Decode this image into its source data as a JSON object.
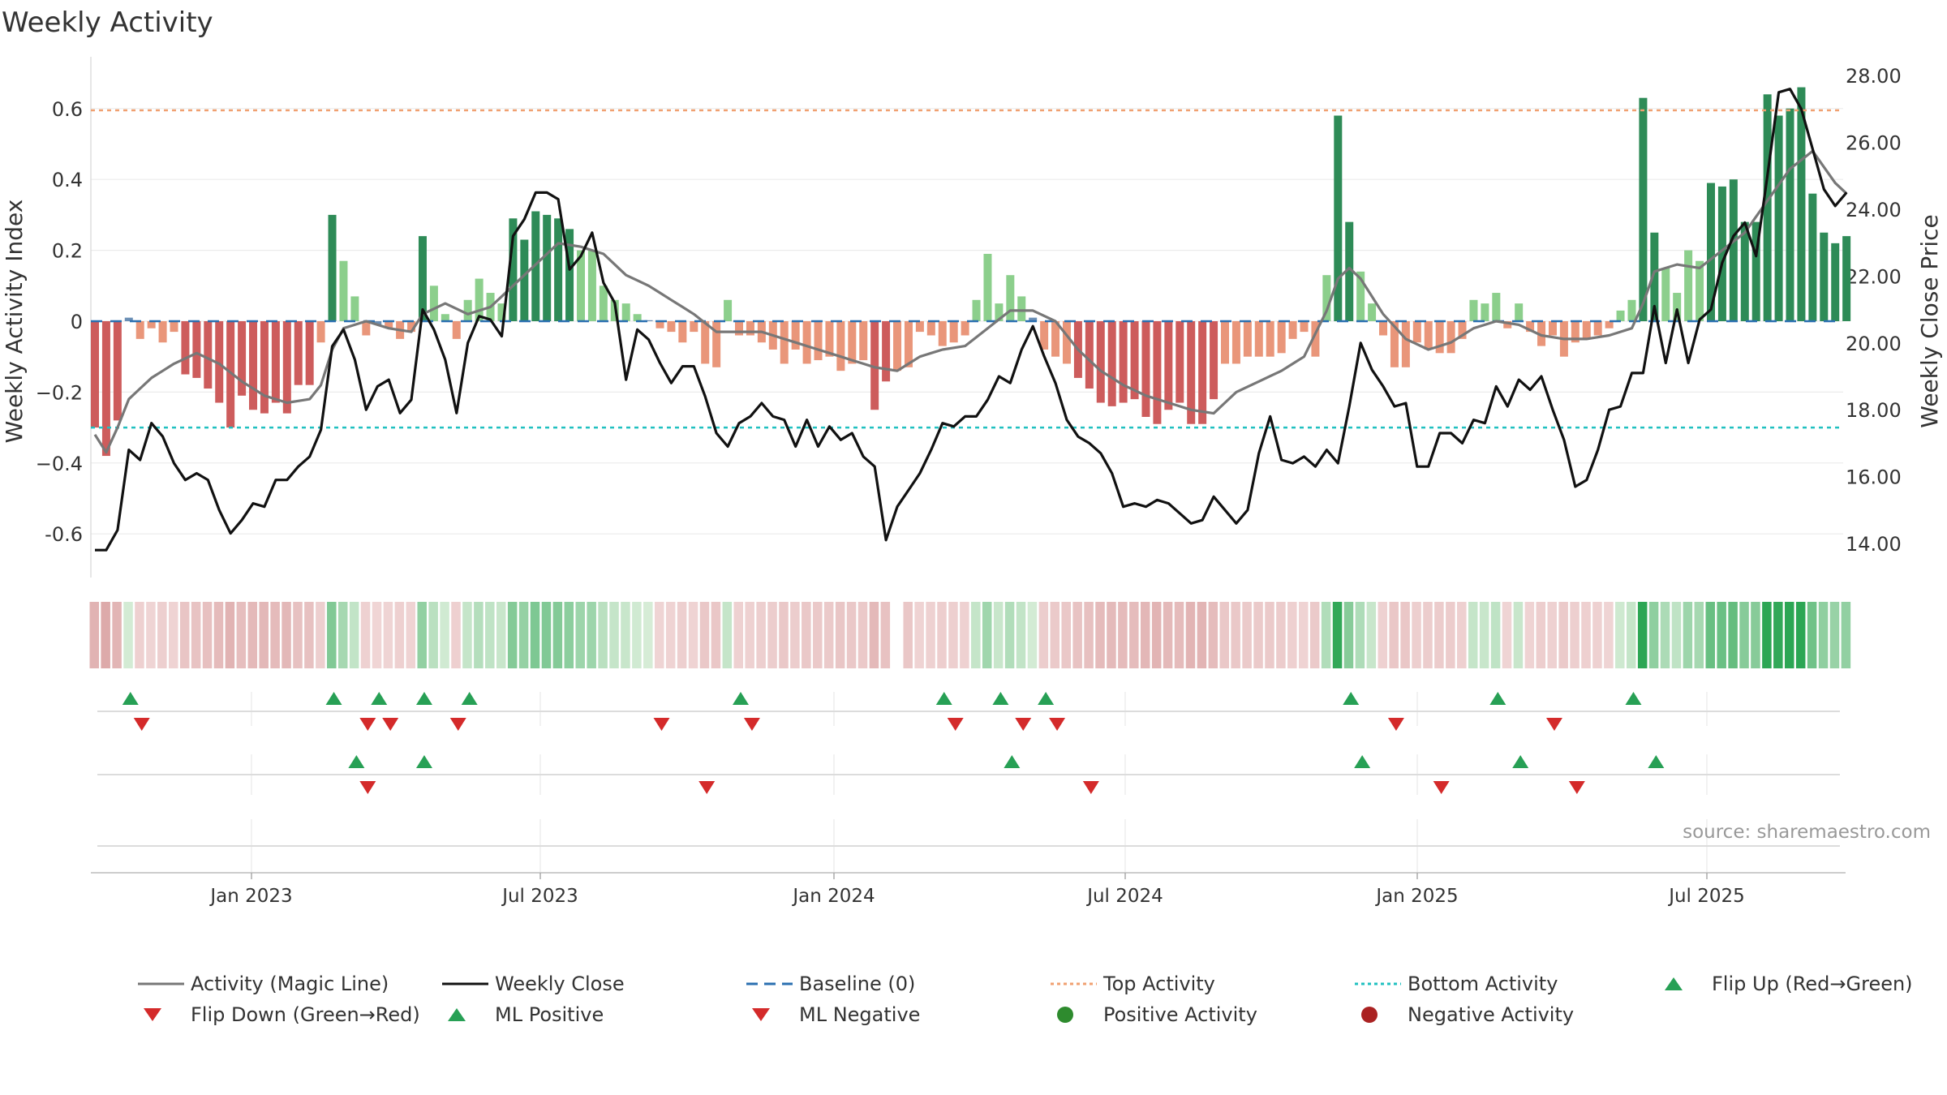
{
  "title": "Weekly Activity",
  "source": "source: sharemaestro.com",
  "colors": {
    "magic_line": "#777777",
    "close_line": "#111111",
    "baseline": "#2a6fb0",
    "top_line": "#f0a070",
    "bottom_line": "#20c0c0",
    "pos_strong": "#2e8b57",
    "pos_light": "#8ccf8c",
    "neg_strong": "#cd5c5c",
    "neg_light": "#e9967a",
    "up_marker": "#27a055",
    "down_marker": "#d42a2a"
  },
  "chart_data": {
    "type": "bar+line",
    "title": "Weekly Activity",
    "ylabel_left": "Weekly Activity Index",
    "ylabel_right": "Weekly Close Price",
    "y_left_range": [
      -0.72,
      0.72
    ],
    "y_left_ticks": [
      "-0.6",
      "−0.4",
      "−0.2",
      "0",
      "0.2",
      "0.4",
      "0.6"
    ],
    "y_right_range": [
      13.0,
      28.6
    ],
    "y_right_ticks": [
      "14.00",
      "16.00",
      "18.00",
      "20.00",
      "22.00",
      "24.00",
      "26.00",
      "28.00"
    ],
    "x_ticks": [
      "Jan 2023",
      "Jul 2023",
      "Jan 2024",
      "Jul 2024",
      "Jan 2025",
      "Jul 2025"
    ],
    "top_activity": 0.595,
    "bottom_activity": -0.3,
    "activity_keyframes": [
      [
        0,
        -0.3
      ],
      [
        1,
        -0.38
      ],
      [
        2,
        -0.28
      ],
      [
        3,
        0.01
      ],
      [
        4,
        -0.05
      ],
      [
        5,
        -0.02
      ],
      [
        6,
        -0.06
      ],
      [
        7,
        -0.03
      ],
      [
        8,
        -0.15
      ],
      [
        9,
        -0.16
      ],
      [
        10,
        -0.19
      ],
      [
        11,
        -0.23
      ],
      [
        12,
        -0.3
      ],
      [
        13,
        -0.21
      ],
      [
        14,
        -0.25
      ],
      [
        15,
        -0.26
      ],
      [
        16,
        -0.23
      ],
      [
        17,
        -0.26
      ],
      [
        18,
        -0.18
      ],
      [
        19,
        -0.18
      ],
      [
        20,
        -0.06
      ],
      [
        21,
        0.3
      ],
      [
        22,
        0.17
      ],
      [
        23,
        0.07
      ],
      [
        24,
        -0.04
      ],
      [
        25,
        -0.01
      ],
      [
        26,
        -0.02
      ],
      [
        27,
        -0.05
      ],
      [
        28,
        -0.03
      ],
      [
        29,
        0.24
      ],
      [
        30,
        0.1
      ],
      [
        31,
        0.02
      ],
      [
        32,
        -0.05
      ],
      [
        33,
        0.06
      ],
      [
        34,
        0.12
      ],
      [
        35,
        0.08
      ],
      [
        36,
        0.05
      ],
      [
        37,
        0.29
      ],
      [
        38,
        0.23
      ],
      [
        39,
        0.31
      ],
      [
        40,
        0.3
      ],
      [
        41,
        0.29
      ],
      [
        42,
        0.26
      ],
      [
        43,
        0.2
      ],
      [
        44,
        0.2
      ],
      [
        45,
        0.1
      ],
      [
        46,
        0.06
      ],
      [
        47,
        0.05
      ],
      [
        48,
        0.02
      ],
      [
        49,
        0
      ],
      [
        50,
        -0.02
      ],
      [
        51,
        -0.03
      ],
      [
        52,
        -0.06
      ],
      [
        53,
        -0.03
      ],
      [
        54,
        -0.12
      ],
      [
        55,
        -0.13
      ],
      [
        56,
        0.06
      ],
      [
        57,
        -0.04
      ],
      [
        58,
        -0.04
      ],
      [
        59,
        -0.06
      ],
      [
        60,
        -0.08
      ],
      [
        61,
        -0.12
      ],
      [
        62,
        -0.08
      ],
      [
        63,
        -0.12
      ],
      [
        64,
        -0.11
      ],
      [
        65,
        -0.1
      ],
      [
        66,
        -0.14
      ],
      [
        67,
        -0.12
      ],
      [
        68,
        -0.11
      ],
      [
        69,
        -0.25
      ],
      [
        70,
        -0.17
      ],
      [
        71,
        -0.14
      ],
      [
        72,
        -0.13
      ],
      [
        73,
        -0.03
      ],
      [
        74,
        -0.04
      ],
      [
        75,
        -0.07
      ],
      [
        76,
        -0.06
      ],
      [
        77,
        -0.04
      ],
      [
        78,
        0.06
      ],
      [
        79,
        0.19
      ],
      [
        80,
        0.05
      ],
      [
        81,
        0.13
      ],
      [
        82,
        0.07
      ],
      [
        83,
        0.01
      ],
      [
        84,
        -0.08
      ],
      [
        85,
        -0.1
      ],
      [
        86,
        -0.12
      ],
      [
        87,
        -0.16
      ],
      [
        88,
        -0.19
      ],
      [
        89,
        -0.23
      ],
      [
        90,
        -0.24
      ],
      [
        91,
        -0.23
      ],
      [
        92,
        -0.22
      ],
      [
        93,
        -0.27
      ],
      [
        94,
        -0.29
      ],
      [
        95,
        -0.25
      ],
      [
        96,
        -0.23
      ],
      [
        97,
        -0.29
      ],
      [
        98,
        -0.29
      ],
      [
        99,
        -0.22
      ],
      [
        100,
        -0.12
      ],
      [
        101,
        -0.12
      ],
      [
        102,
        -0.1
      ],
      [
        103,
        -0.1
      ],
      [
        104,
        -0.1
      ],
      [
        105,
        -0.09
      ],
      [
        106,
        -0.05
      ],
      [
        107,
        -0.03
      ],
      [
        108,
        -0.1
      ],
      [
        109,
        0.13
      ],
      [
        110,
        0.58
      ],
      [
        111,
        0.28
      ],
      [
        112,
        0.14
      ],
      [
        113,
        0.05
      ],
      [
        114,
        -0.04
      ],
      [
        115,
        -0.13
      ],
      [
        116,
        -0.13
      ],
      [
        117,
        -0.06
      ],
      [
        118,
        -0.08
      ],
      [
        119,
        -0.09
      ],
      [
        120,
        -0.09
      ],
      [
        121,
        -0.05
      ],
      [
        122,
        0.06
      ],
      [
        123,
        0.05
      ],
      [
        124,
        0.08
      ],
      [
        125,
        -0.02
      ],
      [
        126,
        0.05
      ],
      [
        127,
        -0.03
      ],
      [
        128,
        -0.07
      ],
      [
        129,
        -0.04
      ],
      [
        130,
        -0.1
      ],
      [
        131,
        -0.06
      ],
      [
        132,
        -0.05
      ],
      [
        133,
        -0.04
      ],
      [
        134,
        -0.02
      ],
      [
        135,
        0.03
      ],
      [
        136,
        0.06
      ],
      [
        137,
        0.63
      ],
      [
        138,
        0.25
      ],
      [
        139,
        0.15
      ],
      [
        140,
        0.08
      ],
      [
        141,
        0.2
      ],
      [
        142,
        0.17
      ],
      [
        143,
        0.39
      ],
      [
        144,
        0.38
      ],
      [
        145,
        0.4
      ],
      [
        146,
        0.28
      ],
      [
        147,
        0.28
      ],
      [
        148,
        0.64
      ],
      [
        149,
        0.58
      ],
      [
        150,
        0.6
      ],
      [
        151,
        0.66
      ],
      [
        152,
        0.36
      ],
      [
        153,
        0.25
      ],
      [
        154,
        0.22
      ],
      [
        155,
        0.24
      ]
    ],
    "magic_keyframes": [
      [
        0,
        -0.32
      ],
      [
        1,
        -0.37
      ],
      [
        2,
        -0.3
      ],
      [
        3,
        -0.22
      ],
      [
        5,
        -0.16
      ],
      [
        7,
        -0.12
      ],
      [
        9,
        -0.09
      ],
      [
        11,
        -0.12
      ],
      [
        13,
        -0.17
      ],
      [
        15,
        -0.21
      ],
      [
        17,
        -0.23
      ],
      [
        19,
        -0.22
      ],
      [
        20,
        -0.18
      ],
      [
        21,
        -0.08
      ],
      [
        22,
        -0.02
      ],
      [
        24,
        0
      ],
      [
        26,
        -0.02
      ],
      [
        28,
        -0.03
      ],
      [
        29,
        0.02
      ],
      [
        31,
        0.05
      ],
      [
        33,
        0.02
      ],
      [
        35,
        0.04
      ],
      [
        37,
        0.1
      ],
      [
        39,
        0.16
      ],
      [
        41,
        0.22
      ],
      [
        43,
        0.21
      ],
      [
        45,
        0.19
      ],
      [
        47,
        0.13
      ],
      [
        49,
        0.1
      ],
      [
        51,
        0.06
      ],
      [
        53,
        0.02
      ],
      [
        55,
        -0.03
      ],
      [
        57,
        -0.03
      ],
      [
        59,
        -0.03
      ],
      [
        61,
        -0.05
      ],
      [
        63,
        -0.07
      ],
      [
        65,
        -0.09
      ],
      [
        67,
        -0.11
      ],
      [
        69,
        -0.13
      ],
      [
        71,
        -0.14
      ],
      [
        73,
        -0.1
      ],
      [
        75,
        -0.08
      ],
      [
        77,
        -0.07
      ],
      [
        79,
        -0.02
      ],
      [
        81,
        0.03
      ],
      [
        83,
        0.03
      ],
      [
        85,
        0
      ],
      [
        87,
        -0.08
      ],
      [
        89,
        -0.14
      ],
      [
        91,
        -0.18
      ],
      [
        93,
        -0.21
      ],
      [
        95,
        -0.23
      ],
      [
        97,
        -0.25
      ],
      [
        99,
        -0.26
      ],
      [
        101,
        -0.2
      ],
      [
        103,
        -0.17
      ],
      [
        105,
        -0.14
      ],
      [
        107,
        -0.1
      ],
      [
        109,
        0.03
      ],
      [
        110,
        0.12
      ],
      [
        111,
        0.15
      ],
      [
        112,
        0.12
      ],
      [
        114,
        0.02
      ],
      [
        116,
        -0.05
      ],
      [
        118,
        -0.08
      ],
      [
        120,
        -0.06
      ],
      [
        122,
        -0.02
      ],
      [
        124,
        0
      ],
      [
        126,
        -0.01
      ],
      [
        128,
        -0.04
      ],
      [
        130,
        -0.05
      ],
      [
        132,
        -0.05
      ],
      [
        134,
        -0.04
      ],
      [
        136,
        -0.02
      ],
      [
        137,
        0.05
      ],
      [
        138,
        0.14
      ],
      [
        140,
        0.16
      ],
      [
        142,
        0.15
      ],
      [
        144,
        0.2
      ],
      [
        146,
        0.25
      ],
      [
        148,
        0.34
      ],
      [
        150,
        0.43
      ],
      [
        152,
        0.48
      ],
      [
        154,
        0.39
      ],
      [
        155,
        0.36
      ]
    ],
    "close_keyframes": [
      [
        0,
        13.8
      ],
      [
        1,
        13.8
      ],
      [
        2,
        14.4
      ],
      [
        3,
        16.8
      ],
      [
        4,
        16.5
      ],
      [
        5,
        17.6
      ],
      [
        6,
        17.2
      ],
      [
        7,
        16.4
      ],
      [
        8,
        15.9
      ],
      [
        9,
        16.1
      ],
      [
        10,
        15.9
      ],
      [
        11,
        15.0
      ],
      [
        12,
        14.3
      ],
      [
        13,
        14.7
      ],
      [
        14,
        15.2
      ],
      [
        15,
        15.1
      ],
      [
        16,
        15.9
      ],
      [
        17,
        15.9
      ],
      [
        18,
        16.3
      ],
      [
        19,
        16.6
      ],
      [
        20,
        17.4
      ],
      [
        21,
        19.9
      ],
      [
        22,
        20.4
      ],
      [
        23,
        19.5
      ],
      [
        24,
        18.0
      ],
      [
        25,
        18.7
      ],
      [
        26,
        18.9
      ],
      [
        27,
        17.9
      ],
      [
        28,
        18.3
      ],
      [
        29,
        21.0
      ],
      [
        30,
        20.4
      ],
      [
        31,
        19.5
      ],
      [
        32,
        17.9
      ],
      [
        33,
        20.0
      ],
      [
        34,
        20.8
      ],
      [
        35,
        20.7
      ],
      [
        36,
        20.2
      ],
      [
        37,
        23.2
      ],
      [
        38,
        23.7
      ],
      [
        39,
        24.5
      ],
      [
        40,
        24.5
      ],
      [
        41,
        24.3
      ],
      [
        42,
        22.2
      ],
      [
        43,
        22.6
      ],
      [
        44,
        23.3
      ],
      [
        45,
        21.8
      ],
      [
        46,
        21.2
      ],
      [
        47,
        18.9
      ],
      [
        48,
        20.4
      ],
      [
        49,
        20.1
      ],
      [
        50,
        19.4
      ],
      [
        51,
        18.8
      ],
      [
        52,
        19.3
      ],
      [
        53,
        19.3
      ],
      [
        54,
        18.4
      ],
      [
        55,
        17.3
      ],
      [
        56,
        16.9
      ],
      [
        57,
        17.6
      ],
      [
        58,
        17.8
      ],
      [
        59,
        18.2
      ],
      [
        60,
        17.8
      ],
      [
        61,
        17.7
      ],
      [
        62,
        16.9
      ],
      [
        63,
        17.7
      ],
      [
        64,
        16.9
      ],
      [
        65,
        17.5
      ],
      [
        66,
        17.1
      ],
      [
        67,
        17.3
      ],
      [
        68,
        16.6
      ],
      [
        69,
        16.3
      ],
      [
        70,
        14.1
      ],
      [
        71,
        15.1
      ],
      [
        72,
        15.6
      ],
      [
        73,
        16.1
      ],
      [
        74,
        16.8
      ],
      [
        75,
        17.6
      ],
      [
        76,
        17.5
      ],
      [
        77,
        17.8
      ],
      [
        78,
        17.8
      ],
      [
        79,
        18.3
      ],
      [
        80,
        19.0
      ],
      [
        81,
        18.8
      ],
      [
        82,
        19.8
      ],
      [
        83,
        20.5
      ],
      [
        84,
        19.6
      ],
      [
        85,
        18.8
      ],
      [
        86,
        17.7
      ],
      [
        87,
        17.2
      ],
      [
        88,
        17.0
      ],
      [
        89,
        16.7
      ],
      [
        90,
        16.1
      ],
      [
        91,
        15.1
      ],
      [
        92,
        15.2
      ],
      [
        93,
        15.1
      ],
      [
        94,
        15.3
      ],
      [
        95,
        15.2
      ],
      [
        96,
        14.9
      ],
      [
        97,
        14.6
      ],
      [
        98,
        14.7
      ],
      [
        99,
        15.4
      ],
      [
        100,
        15.0
      ],
      [
        101,
        14.6
      ],
      [
        102,
        15.0
      ],
      [
        103,
        16.7
      ],
      [
        104,
        17.8
      ],
      [
        105,
        16.5
      ],
      [
        106,
        16.4
      ],
      [
        107,
        16.6
      ],
      [
        108,
        16.3
      ],
      [
        109,
        16.8
      ],
      [
        110,
        16.4
      ],
      [
        111,
        18.1
      ],
      [
        112,
        20.0
      ],
      [
        113,
        19.2
      ],
      [
        114,
        18.7
      ],
      [
        115,
        18.1
      ],
      [
        116,
        18.2
      ],
      [
        117,
        16.3
      ],
      [
        118,
        16.3
      ],
      [
        119,
        17.3
      ],
      [
        120,
        17.3
      ],
      [
        121,
        17.0
      ],
      [
        122,
        17.7
      ],
      [
        123,
        17.6
      ],
      [
        124,
        18.7
      ],
      [
        125,
        18.1
      ],
      [
        126,
        18.9
      ],
      [
        127,
        18.6
      ],
      [
        128,
        19.0
      ],
      [
        129,
        18.0
      ],
      [
        130,
        17.1
      ],
      [
        131,
        15.7
      ],
      [
        132,
        15.9
      ],
      [
        133,
        16.8
      ],
      [
        134,
        18.0
      ],
      [
        135,
        18.1
      ],
      [
        136,
        19.1
      ],
      [
        137,
        19.1
      ],
      [
        138,
        21.1
      ],
      [
        139,
        19.4
      ],
      [
        140,
        21.0
      ],
      [
        141,
        19.4
      ],
      [
        142,
        20.7
      ],
      [
        143,
        21.0
      ],
      [
        144,
        22.4
      ],
      [
        145,
        23.2
      ],
      [
        146,
        23.6
      ],
      [
        147,
        22.6
      ],
      [
        148,
        25.0
      ],
      [
        149,
        27.5
      ],
      [
        150,
        27.6
      ],
      [
        151,
        27.0
      ],
      [
        152,
        25.8
      ],
      [
        153,
        24.6
      ],
      [
        154,
        24.1
      ],
      [
        155,
        24.5
      ]
    ],
    "strip_gap_index": 71,
    "flip_up_x": [
      3,
      21,
      25,
      29,
      33,
      57,
      75,
      80,
      84,
      111,
      124,
      136
    ],
    "flip_down_x": [
      4,
      24,
      26,
      32,
      50,
      58,
      76,
      82,
      85,
      115,
      129
    ],
    "ml_positive_x": [
      23,
      29,
      81,
      112,
      126,
      138
    ],
    "ml_negative_x": [
      24,
      54,
      88,
      119,
      131
    ],
    "legend": [
      {
        "label": "Activity (Magic Line)",
        "kind": "line-gray"
      },
      {
        "label": "Weekly Close",
        "kind": "line-black"
      },
      {
        "label": "Baseline (0)",
        "kind": "dash-blue"
      },
      {
        "label": "Top Activity",
        "kind": "dot-orange"
      },
      {
        "label": "Bottom Activity",
        "kind": "dot-cyan"
      },
      {
        "label": "Flip Up (Red→Green)",
        "kind": "tri-up-green"
      },
      {
        "label": "Flip Down (Green→Red)",
        "kind": "tri-down-red"
      },
      {
        "label": "ML Positive",
        "kind": "tri-up-green"
      },
      {
        "label": "ML Negative",
        "kind": "tri-down-red"
      },
      {
        "label": "Positive Activity",
        "kind": "dot-green"
      },
      {
        "label": "Negative Activity",
        "kind": "dot-red"
      }
    ]
  }
}
